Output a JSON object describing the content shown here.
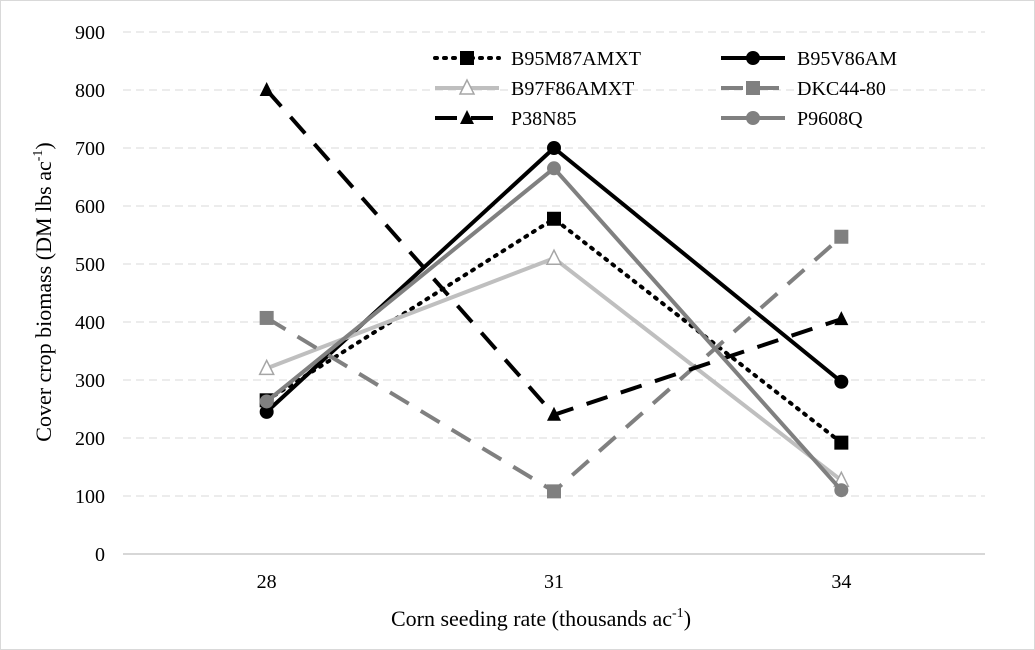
{
  "chart_data": {
    "type": "line",
    "title": "",
    "xlabel": "Corn seeding rate (thousands ac",
    "xlabel_sup": "-1",
    "xlabel_end": ")",
    "ylabel": "Cover crop biomass (DM lbs ac",
    "ylabel_sup": "-1",
    "ylabel_end": ")",
    "categories": [
      "28",
      "31",
      "34"
    ],
    "ylim": [
      0,
      900
    ],
    "yticks": [
      "0",
      "100",
      "200",
      "300",
      "400",
      "500",
      "600",
      "700",
      "800",
      "900"
    ],
    "grid": "horizontal dashed",
    "legend_position": "top-right",
    "series": [
      {
        "name": "B95M87AMXT",
        "values": [
          265,
          578,
          192
        ],
        "color": "#000000",
        "dash": "dotted",
        "marker": "square"
      },
      {
        "name": "B95V86AM",
        "values": [
          245,
          700,
          297
        ],
        "color": "#000000",
        "dash": "solid",
        "marker": "circle"
      },
      {
        "name": "B97F86AMXT",
        "values": [
          320,
          510,
          127
        ],
        "color": "#bfbfbf",
        "dash": "solid",
        "marker": "triangle-open"
      },
      {
        "name": "DKC44-80",
        "values": [
          407,
          108,
          547
        ],
        "color": "#808080",
        "dash": "dashed",
        "marker": "square"
      },
      {
        "name": "P38N85",
        "values": [
          800,
          240,
          405
        ],
        "color": "#000000",
        "dash": "dashed",
        "marker": "triangle"
      },
      {
        "name": "P9608Q",
        "values": [
          263,
          665,
          110
        ],
        "color": "#808080",
        "dash": "solid",
        "marker": "circle"
      }
    ]
  }
}
